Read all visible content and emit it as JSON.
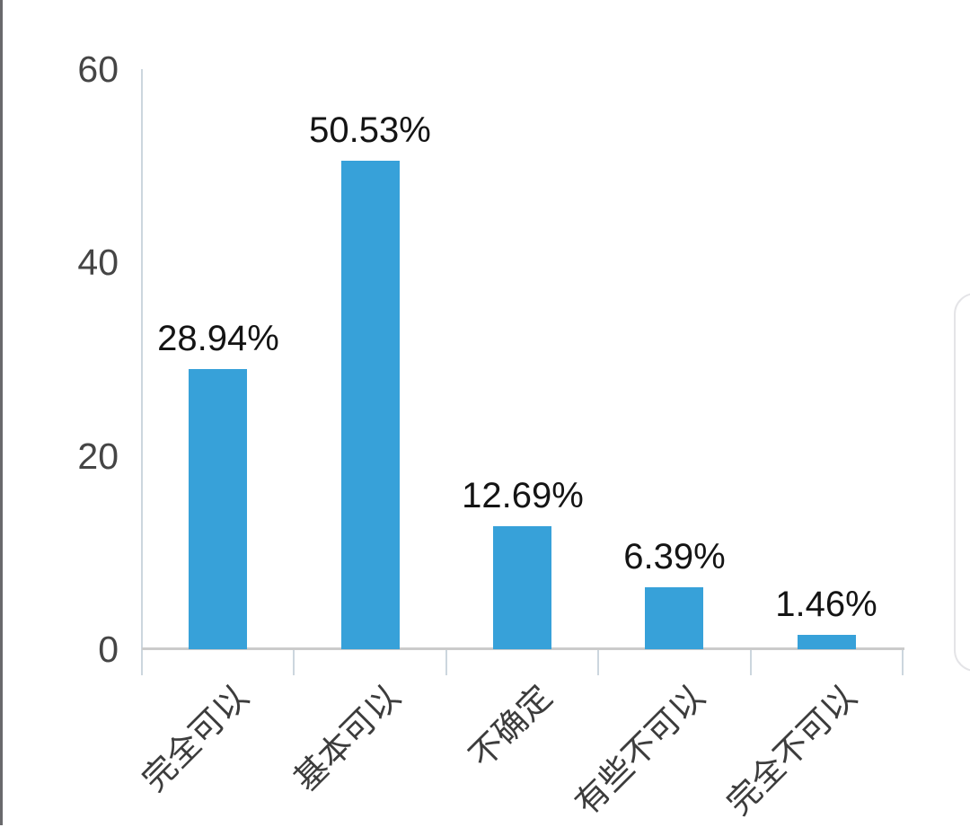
{
  "window": {
    "background_color": "#ffffff",
    "left_border_color": "#69696c",
    "side_panel_border_color": "#e4e4e7"
  },
  "chart_data": {
    "type": "bar",
    "title": "",
    "xlabel": "",
    "ylabel": "",
    "categories": [
      "完全可以",
      "基本可以",
      "不确定",
      "有些不可以",
      "完全不可以"
    ],
    "values": [
      28.94,
      50.53,
      12.69,
      6.39,
      1.46
    ],
    "value_labels": [
      "28.94%",
      "50.53%",
      "12.69%",
      "6.39%",
      "1.46%"
    ],
    "y_ticks": [
      "60",
      "40",
      "20",
      "0"
    ],
    "y_tick_values": [
      60,
      40,
      20,
      0
    ],
    "ylim": [
      0,
      60
    ],
    "bar_color": "#37a1d9",
    "axis_color_x": "#cbcbcb",
    "axis_color_y": "#ccd6de",
    "grid": false,
    "legend_position": "none",
    "x_label_rotation_deg": 45
  }
}
